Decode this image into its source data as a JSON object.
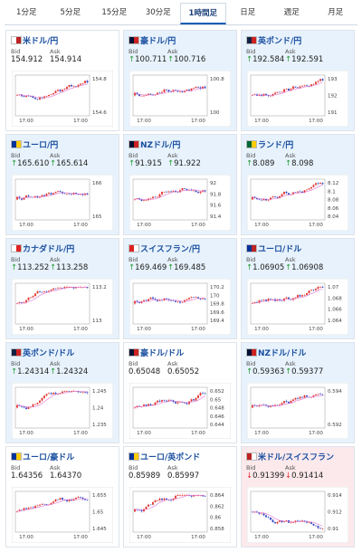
{
  "tabs": {
    "items": [
      "1分足",
      "5分足",
      "15分足",
      "30分足",
      "1時間足",
      "日足",
      "週足",
      "月足"
    ],
    "active": "1時間足"
  },
  "labels": {
    "bid": "Bid",
    "ask": "Ask"
  },
  "pairs": [
    {
      "name": "米ドル/円",
      "trend": "flat",
      "bid": "154.912",
      "ask": "154.914",
      "yticks": [
        "154.8",
        "154.6"
      ],
      "x_labels": [
        "17:00",
        "17:00"
      ]
    },
    {
      "name": "豪ドル/円",
      "trend": "up",
      "arrow": "↑",
      "bid": "100.711",
      "ask": "100.716",
      "yticks": [
        "100.8",
        "100"
      ],
      "x_labels": [
        "17:00",
        "17:00"
      ]
    },
    {
      "name": "英ポンド/円",
      "trend": "up",
      "arrow": "↑",
      "bid": "192.584",
      "ask": "192.591",
      "yticks": [
        "193",
        "192",
        "191"
      ],
      "x_labels": [
        "17:00",
        "17:00"
      ]
    },
    {
      "name": "ユーロ/円",
      "trend": "up",
      "arrow": "↑",
      "bid": "165.610",
      "ask": "165.614",
      "yticks": [
        "166",
        "165"
      ],
      "x_labels": [
        "17:00",
        "17:00"
      ]
    },
    {
      "name": "NZドル/円",
      "trend": "up",
      "arrow": "↑",
      "bid": "91.915",
      "ask": "91.922",
      "yticks": [
        "92",
        "91.8",
        "91.6",
        "91.4"
      ],
      "x_labels": [
        "17:00",
        "17:00"
      ]
    },
    {
      "name": "ランド/円",
      "trend": "up",
      "arrow": "↑",
      "bid": "8.089",
      "ask": "8.098",
      "yticks": [
        "8.12",
        "8.1",
        "8.08",
        "8.06",
        "8.04"
      ],
      "x_labels": [
        "17:00",
        "17:00"
      ]
    },
    {
      "name": "カナダドル/円",
      "trend": "up",
      "arrow": "↑",
      "bid": "113.252",
      "ask": "113.258",
      "yticks": [
        "113.2",
        "113"
      ],
      "x_labels": [
        "17:00",
        "17:00"
      ]
    },
    {
      "name": "スイスフラン/円",
      "trend": "up",
      "arrow": "↑",
      "bid": "169.469",
      "ask": "169.485",
      "yticks": [
        "170.2",
        "170",
        "169.8",
        "169.6",
        "169.4"
      ],
      "x_labels": [
        "17:00",
        "17:00"
      ]
    },
    {
      "name": "ユーロ/ドル",
      "trend": "up",
      "arrow": "↑",
      "bid": "1.06905",
      "ask": "1.06908",
      "yticks": [
        "1.07",
        "1.068",
        "1.066",
        "1.064"
      ],
      "x_labels": [
        "17:00",
        "17:00"
      ]
    },
    {
      "name": "英ポンド/ドル",
      "trend": "up",
      "arrow": "↑",
      "bid": "1.24314",
      "ask": "1.24324",
      "yticks": [
        "1.245",
        "1.24",
        "1.235"
      ],
      "x_labels": [
        "17:00",
        "17:00"
      ]
    },
    {
      "name": "豪ドル/ドル",
      "trend": "flat",
      "bid": "0.65048",
      "ask": "0.65052",
      "yticks": [
        "0.652",
        "0.65",
        "0.648",
        "0.646",
        "0.644"
      ],
      "x_labels": [
        "17:00",
        "17:00"
      ]
    },
    {
      "name": "NZドル/ドル",
      "trend": "up",
      "arrow": "↑",
      "bid": "0.59363",
      "ask": "0.59377",
      "yticks": [
        "0.594",
        "0.592"
      ],
      "x_labels": [
        "17:00",
        "17:00"
      ]
    },
    {
      "name": "ユーロ/豪ドル",
      "trend": "flat",
      "bid": "1.64356",
      "ask": "1.64370",
      "yticks": [
        "1.655",
        "1.65",
        "1.645"
      ],
      "x_labels": [
        "17:00",
        "17:00"
      ]
    },
    {
      "name": "ユーロ/英ポンド",
      "trend": "flat",
      "bid": "0.85989",
      "ask": "0.85997",
      "yticks": [
        "0.864",
        "0.862",
        "0.86",
        "0.858"
      ],
      "x_labels": [
        "17:00",
        "17:00"
      ]
    },
    {
      "name": "米ドル/スイスフラン",
      "trend": "down",
      "arrow": "↓",
      "bid": "0.91399",
      "ask": "0.91414",
      "yticks": [
        "0.914",
        "0.912",
        "0.91"
      ],
      "x_labels": [
        "17:00",
        "17:00"
      ]
    }
  ]
}
